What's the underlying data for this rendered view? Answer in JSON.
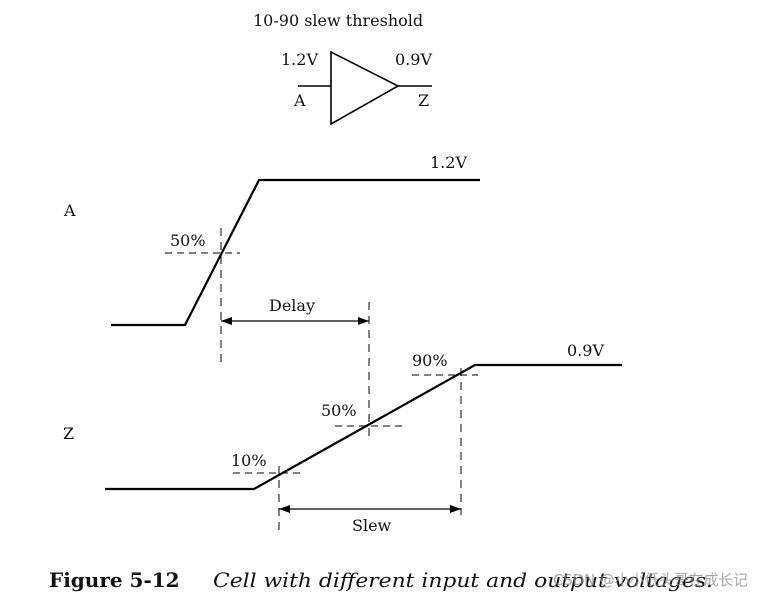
{
  "header": {
    "title": "10-90 slew threshold"
  },
  "buffer": {
    "input_voltage": "1.2V",
    "output_voltage": "0.9V",
    "input_pin": "A",
    "output_pin": "Z"
  },
  "waveform_a": {
    "signal_label": "A",
    "high_level": "1.2V",
    "threshold_label": "50%"
  },
  "measurements": {
    "delay_label": "Delay",
    "slew_label": "Slew"
  },
  "waveform_z": {
    "signal_label": "Z",
    "high_level": "0.9V",
    "threshold_90": "90%",
    "threshold_50": "50%",
    "threshold_10": "10%"
  },
  "caption": {
    "figure_number": "Figure 5-12",
    "text": "Cell with different input and output voltages."
  },
  "watermark": {
    "text": "CSDN @小小低头哥在成长记"
  },
  "colors": {
    "ink": "#000000",
    "background": "#ffffff",
    "watermark": "#8a8a8a"
  }
}
